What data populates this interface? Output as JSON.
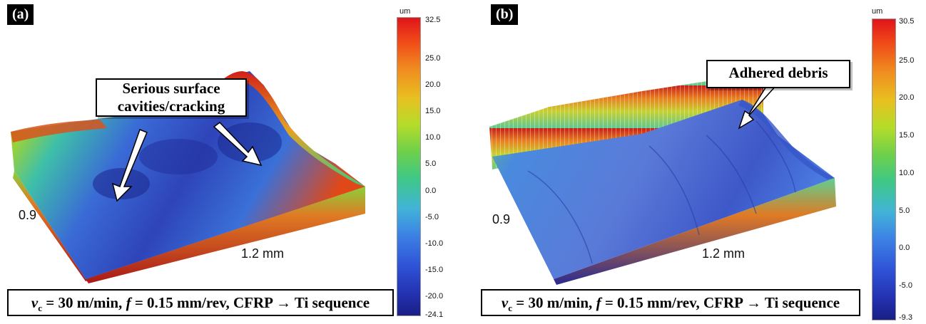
{
  "panels": [
    {
      "label": "(a)",
      "width_label": "1.2 mm",
      "depth_label": "0.9",
      "colorbar": {
        "unit": "um",
        "ticks": [
          "32.5",
          "25.0",
          "20.0",
          "15.0",
          "10.0",
          "5.0",
          "0.0",
          "-5.0",
          "-10.0",
          "-15.0",
          "-20.0",
          "-24.1"
        ]
      },
      "callout": [
        "Serious surface",
        "cavities/cracking"
      ],
      "caption": {
        "var_v": "v",
        "sub_c": "c",
        "eq1": " = 30 m/min, ",
        "var_f": "f",
        "eq2": " = 0.15 mm/rev, CFRP → Ti sequence"
      }
    },
    {
      "label": "(b)",
      "width_label": "1.2 mm",
      "depth_label": "0.9",
      "colorbar": {
        "unit": "um",
        "ticks": [
          "30.5",
          "25.0",
          "20.0",
          "15.0",
          "10.0",
          "5.0",
          "0.0",
          "-5.0",
          "-9.3"
        ]
      },
      "callout": [
        "Adhered debris"
      ],
      "caption": {
        "var_v": "v",
        "sub_c": "c",
        "eq1": " = 30 m/min, ",
        "var_f": "f",
        "eq2": " = 0.15 mm/rev, CFRP → Ti sequence"
      }
    }
  ],
  "colors": {
    "high": "#e0141b",
    "mid": "#3ec886",
    "low": "#1a1e86",
    "surface_blue": "#4a6ed8"
  }
}
